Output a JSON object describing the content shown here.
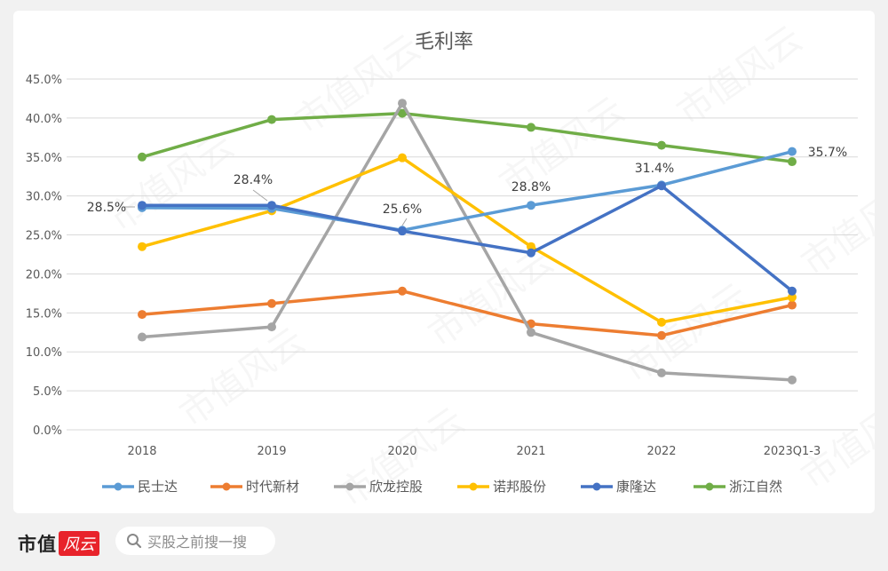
{
  "chart_data": {
    "type": "line",
    "title": "毛利率",
    "xlabel": "",
    "ylabel": "",
    "ylim": [
      0,
      45
    ],
    "yticks": [
      "0.0%",
      "5.0%",
      "10.0%",
      "15.0%",
      "20.0%",
      "25.0%",
      "30.0%",
      "35.0%",
      "40.0%",
      "45.0%"
    ],
    "categories": [
      "2018",
      "2019",
      "2020",
      "2021",
      "2022",
      "2023Q1-3"
    ],
    "grid": true,
    "legend_position": "bottom",
    "series": [
      {
        "name": "民士达",
        "color": "#5b9bd5",
        "values": [
          28.5,
          28.4,
          25.6,
          28.8,
          31.4,
          35.7
        ]
      },
      {
        "name": "时代新材",
        "color": "#ed7d31",
        "values": [
          14.8,
          16.2,
          17.8,
          13.6,
          12.1,
          16.0
        ]
      },
      {
        "name": "欣龙控股",
        "color": "#a5a5a5",
        "values": [
          11.9,
          13.2,
          41.9,
          12.5,
          7.3,
          6.4
        ]
      },
      {
        "name": "诺邦股份",
        "color": "#ffc000",
        "values": [
          23.5,
          28.1,
          34.9,
          23.5,
          13.8,
          17.0
        ]
      },
      {
        "name": "康隆达",
        "color": "#4472c4",
        "values": [
          28.8,
          28.8,
          25.5,
          22.7,
          31.3,
          17.8
        ]
      },
      {
        "name": "浙江自然",
        "color": "#70ad47",
        "values": [
          35.0,
          39.8,
          40.6,
          38.8,
          36.5,
          34.4
        ]
      }
    ],
    "annotations": [
      {
        "series": "民士达",
        "index": 0,
        "text": "28.5%"
      },
      {
        "series": "民士达",
        "index": 1,
        "text": "28.4%"
      },
      {
        "series": "民士达",
        "index": 2,
        "text": "25.6%"
      },
      {
        "series": "民士达",
        "index": 3,
        "text": "28.8%"
      },
      {
        "series": "民士达",
        "index": 4,
        "text": "31.4%"
      },
      {
        "series": "民士达",
        "index": 5,
        "text": "35.7%"
      }
    ]
  },
  "watermark": "市值风云",
  "footer": {
    "brand_text": "市值",
    "brand_badge": "风云",
    "search_placeholder": "买股之前搜一搜"
  }
}
